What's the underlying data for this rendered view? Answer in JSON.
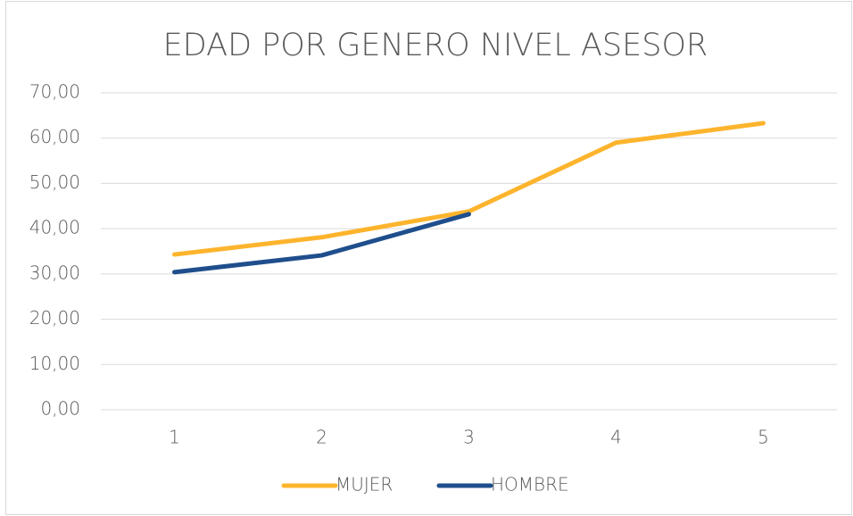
{
  "chart_data": {
    "type": "line",
    "title": "EDAD POR GENERO NIVEL ASESOR",
    "categories": [
      "1",
      "2",
      "3",
      "4",
      "5"
    ],
    "series": [
      {
        "name": "MUJER",
        "color": "#fdb42d",
        "values": [
          34.3,
          38.1,
          43.8,
          59.0,
          63.3
        ]
      },
      {
        "name": "HOMBRE",
        "color": "#1f4e8c",
        "values": [
          30.4,
          34.1,
          43.2,
          null,
          null
        ]
      }
    ],
    "ylim": [
      0,
      70
    ],
    "yticks": [
      {
        "value": 0,
        "label": "0,00"
      },
      {
        "value": 10,
        "label": "10,00"
      },
      {
        "value": 20,
        "label": "20,00"
      },
      {
        "value": 30,
        "label": "30,00"
      },
      {
        "value": 40,
        "label": "40,00"
      },
      {
        "value": 50,
        "label": "50,00"
      },
      {
        "value": 60,
        "label": "60,00"
      },
      {
        "value": 70,
        "label": "70,00"
      }
    ],
    "grid": true,
    "legend": "bottom"
  }
}
